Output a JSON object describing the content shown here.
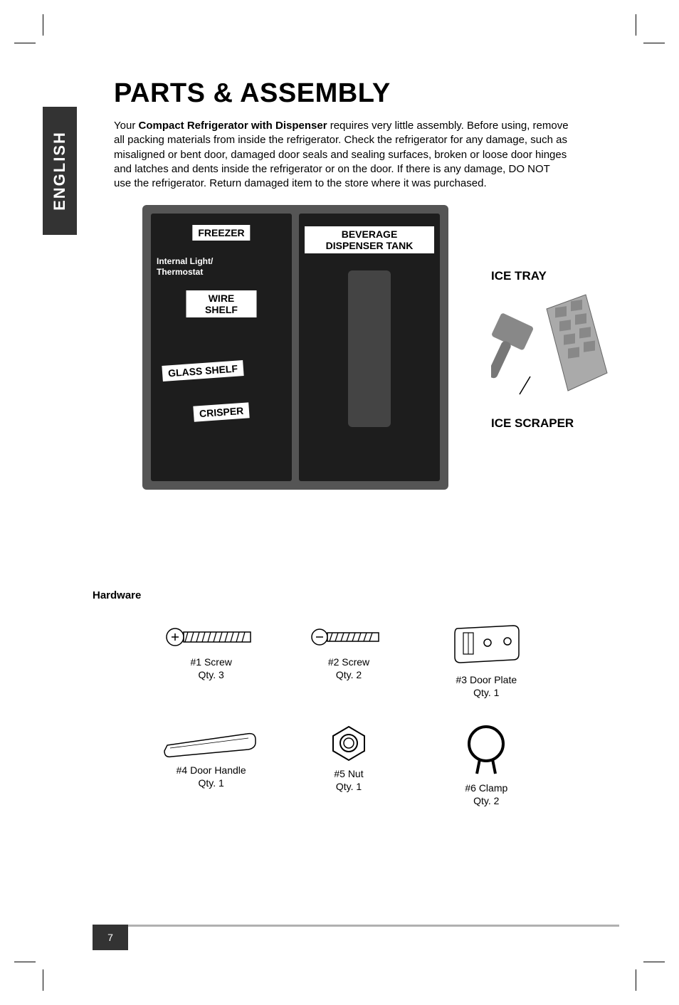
{
  "colors": {
    "text": "#000000",
    "page_bg": "#ffffff",
    "tab_bg": "#333333",
    "tab_text": "#ffffff",
    "rule": "#b0b0b0",
    "fridge_outer": "#555555",
    "fridge_inner": "#1d1d1d",
    "label_bg": "#ffffff"
  },
  "typography": {
    "title_size_pt": 29,
    "body_size_pt": 11,
    "label_size_pt": 11,
    "acc_label_size_pt": 13,
    "page_num_size_pt": 11,
    "font_family": "Myriad Pro / sans-serif"
  },
  "side_tab": "ENGLISH",
  "title": "PARTS & ASSEMBLY",
  "intro_html": "Your <b>Compact Refrigerator with Dispenser</b> requires very little assembly. Before using, remove all packing materials from inside the refrigerator. Check the refrigerator for any damage, such as misaligned or bent door, damaged door seals and sealing surfaces, broken or loose door hinges and latches and dents inside the refrigerator or on the door. If there is any damage, DO NOT use the refrigerator. Return damaged item to the store where it was purchased.",
  "diagram": {
    "left_compartment": {
      "freezer": "FREEZER",
      "thermostat": "Internal Light/\nThermostat",
      "wire_shelf": "WIRE SHELF",
      "glass_shelf": "GLASS SHELF",
      "crisper": "CRISPER"
    },
    "right_compartment": {
      "beverage_tank": "BEVERAGE\nDISPENSER TANK"
    },
    "accessories": {
      "ice_tray": "ICE TRAY",
      "ice_scraper": "ICE SCRAPER"
    }
  },
  "hardware_title": "Hardware",
  "hardware": [
    {
      "name": "#1 Screw",
      "qty": "Qty. 3",
      "icon": "screw-long"
    },
    {
      "name": "#2 Screw",
      "qty": "Qty. 2",
      "icon": "screw-short"
    },
    {
      "name": "#3 Door Plate",
      "qty": "Qty. 1",
      "icon": "door-plate"
    },
    {
      "name": "#4 Door Handle",
      "qty": "Qty. 1",
      "icon": "door-handle"
    },
    {
      "name": "#5 Nut",
      "qty": "Qty. 1",
      "icon": "nut"
    },
    {
      "name": "#6 Clamp",
      "qty": "Qty. 2",
      "icon": "clamp"
    }
  ],
  "page_number": "7"
}
